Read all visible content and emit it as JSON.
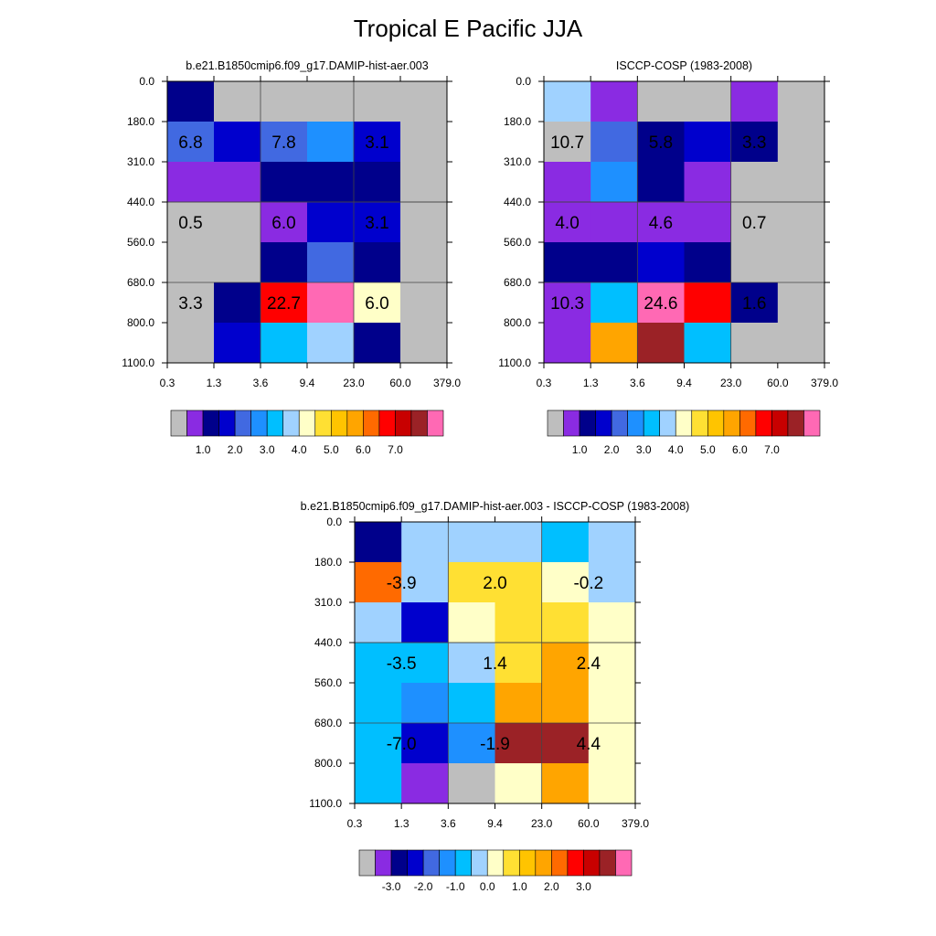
{
  "figure": {
    "title": "Tropical E Pacific JJA"
  },
  "chart_data": [
    {
      "type": "heatmap",
      "title": "b.e21.B1850cmip6.f09_g17.DAMIP-hist-aer.003",
      "x_ticks": [
        "0.3",
        "1.3",
        "3.6",
        "9.4",
        "23.0",
        "60.0",
        "379.0"
      ],
      "y_ticks": [
        "0.0",
        "180.0",
        "310.0",
        "440.0",
        "560.0",
        "680.0",
        "800.0",
        "1100.0"
      ],
      "colorbar": {
        "colors": [
          "#bebebe",
          "#8a2be2",
          "#00008b",
          "#0000cd",
          "#4169e1",
          "#1e90ff",
          "#00bfff",
          "#a0d2ff",
          "#ffffc8",
          "#ffe033",
          "#ffc400",
          "#ffa500",
          "#ff6a00",
          "#ff0000",
          "#c80000",
          "#9b2226",
          "#ff69b4"
        ],
        "labels": [
          "1.0",
          "2.0",
          "3.0",
          "4.0",
          "5.0",
          "6.0",
          "7.0"
        ],
        "label_boundaries": [
          2,
          4,
          6,
          8,
          10,
          12,
          14
        ]
      },
      "color_index": [
        [
          2,
          0,
          0,
          0,
          0,
          0
        ],
        [
          4,
          3,
          4,
          5,
          3,
          0
        ],
        [
          1,
          1,
          2,
          2,
          2,
          0
        ],
        [
          0,
          0,
          1,
          3,
          3,
          0
        ],
        [
          0,
          0,
          2,
          4,
          2,
          0
        ],
        [
          0,
          2,
          13,
          16,
          8,
          0
        ],
        [
          0,
          3,
          6,
          7,
          2,
          0
        ]
      ],
      "annotations": [
        {
          "text": "6.8",
          "col": 0.5,
          "row": 1.5
        },
        {
          "text": "7.8",
          "col": 2.5,
          "row": 1.5
        },
        {
          "text": "3.1",
          "col": 4.5,
          "row": 1.5
        },
        {
          "text": "0.5",
          "col": 0.5,
          "row": 3.5
        },
        {
          "text": "6.0",
          "col": 2.5,
          "row": 3.5
        },
        {
          "text": "3.1",
          "col": 4.5,
          "row": 3.5
        },
        {
          "text": "3.3",
          "col": 0.5,
          "row": 5.5
        },
        {
          "text": "22.7",
          "col": 2.5,
          "row": 5.5
        },
        {
          "text": "6.0",
          "col": 4.5,
          "row": 5.5
        }
      ]
    },
    {
      "type": "heatmap",
      "title": "ISCCP-COSP (1983-2008)",
      "x_ticks": [
        "0.3",
        "1.3",
        "3.6",
        "9.4",
        "23.0",
        "60.0",
        "379.0"
      ],
      "y_ticks": [
        "0.0",
        "180.0",
        "310.0",
        "440.0",
        "560.0",
        "680.0",
        "800.0",
        "1100.0"
      ],
      "colorbar": {
        "colors": [
          "#bebebe",
          "#8a2be2",
          "#00008b",
          "#0000cd",
          "#4169e1",
          "#1e90ff",
          "#00bfff",
          "#a0d2ff",
          "#ffffc8",
          "#ffe033",
          "#ffc400",
          "#ffa500",
          "#ff6a00",
          "#ff0000",
          "#c80000",
          "#9b2226",
          "#ff69b4"
        ],
        "labels": [
          "1.0",
          "2.0",
          "3.0",
          "4.0",
          "5.0",
          "6.0",
          "7.0"
        ],
        "label_boundaries": [
          2,
          4,
          6,
          8,
          10,
          12,
          14
        ]
      },
      "color_index": [
        [
          7,
          1,
          0,
          0,
          1,
          0
        ],
        [
          0,
          4,
          2,
          3,
          2,
          0
        ],
        [
          1,
          5,
          2,
          1,
          0,
          0
        ],
        [
          1,
          1,
          1,
          1,
          0,
          0
        ],
        [
          2,
          2,
          3,
          2,
          0,
          0
        ],
        [
          1,
          6,
          16,
          13,
          2,
          0
        ],
        [
          1,
          11,
          15,
          6,
          0,
          0
        ]
      ],
      "annotations": [
        {
          "text": "10.7",
          "col": 0.5,
          "row": 1.5
        },
        {
          "text": "5.8",
          "col": 2.5,
          "row": 1.5
        },
        {
          "text": "3.3",
          "col": 4.5,
          "row": 1.5
        },
        {
          "text": "4.0",
          "col": 0.5,
          "row": 3.5
        },
        {
          "text": "4.6",
          "col": 2.5,
          "row": 3.5
        },
        {
          "text": "0.7",
          "col": 4.5,
          "row": 3.5
        },
        {
          "text": "10.3",
          "col": 0.5,
          "row": 5.5
        },
        {
          "text": "24.6",
          "col": 2.5,
          "row": 5.5
        },
        {
          "text": "1.6",
          "col": 4.5,
          "row": 5.5
        }
      ]
    },
    {
      "type": "heatmap",
      "title": "b.e21.B1850cmip6.f09_g17.DAMIP-hist-aer.003 - ISCCP-COSP (1983-2008)",
      "x_ticks": [
        "0.3",
        "1.3",
        "3.6",
        "9.4",
        "23.0",
        "60.0",
        "379.0"
      ],
      "y_ticks": [
        "0.0",
        "180.0",
        "310.0",
        "440.0",
        "560.0",
        "680.0",
        "800.0",
        "1100.0"
      ],
      "colorbar": {
        "colors": [
          "#bebebe",
          "#8a2be2",
          "#00008b",
          "#0000cd",
          "#4169e1",
          "#1e90ff",
          "#00bfff",
          "#a0d2ff",
          "#ffffc8",
          "#ffe033",
          "#ffc400",
          "#ffa500",
          "#ff6a00",
          "#ff0000",
          "#c80000",
          "#9b2226",
          "#ff69b4"
        ],
        "labels": [
          "-3.0",
          "-2.0",
          "-1.0",
          "0.0",
          "1.0",
          "2.0",
          "3.0"
        ],
        "label_boundaries": [
          2,
          4,
          6,
          8,
          10,
          12,
          14
        ]
      },
      "color_index": [
        [
          2,
          7,
          7,
          7,
          6,
          7
        ],
        [
          12,
          7,
          9,
          9,
          8,
          7
        ],
        [
          7,
          3,
          8,
          9,
          9,
          8
        ],
        [
          6,
          6,
          7,
          9,
          11,
          8
        ],
        [
          6,
          5,
          6,
          11,
          11,
          8
        ],
        [
          6,
          3,
          5,
          15,
          15,
          8
        ],
        [
          6,
          1,
          0,
          8,
          11,
          8
        ]
      ],
      "annotations": [
        {
          "text": "-3.9",
          "col": 1.0,
          "row": 1.5
        },
        {
          "text": "2.0",
          "col": 3.0,
          "row": 1.5
        },
        {
          "text": "-0.2",
          "col": 5.0,
          "row": 1.5
        },
        {
          "text": "-3.5",
          "col": 1.0,
          "row": 3.5
        },
        {
          "text": "1.4",
          "col": 3.0,
          "row": 3.5
        },
        {
          "text": "2.4",
          "col": 5.0,
          "row": 3.5
        },
        {
          "text": "-7.0",
          "col": 1.0,
          "row": 5.5
        },
        {
          "text": "-1.9",
          "col": 3.0,
          "row": 5.5
        },
        {
          "text": "4.4",
          "col": 5.0,
          "row": 5.5
        }
      ]
    }
  ]
}
